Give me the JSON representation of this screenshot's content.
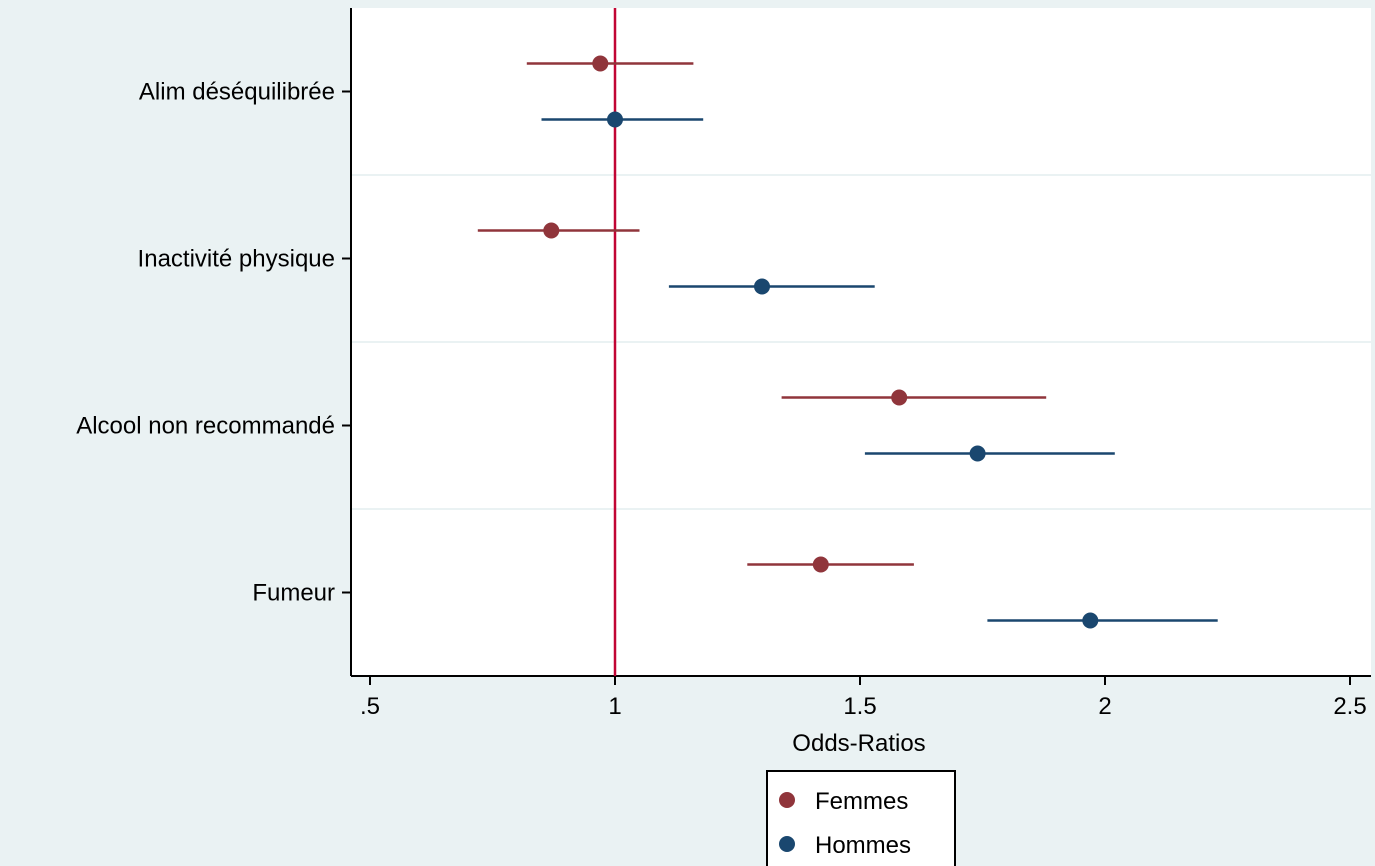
{
  "chart_data": {
    "type": "scatter",
    "subtype": "forest-plot",
    "title": "",
    "xlabel": "Odds-Ratios",
    "ylabel": "",
    "xlim": [
      0.5,
      2.5
    ],
    "x_ticks": [
      0.5,
      1,
      1.5,
      2,
      2.5
    ],
    "x_tick_labels": [
      ".5",
      "1",
      "1.5",
      "2",
      "2.5"
    ],
    "reference_line": 1,
    "categories": [
      "Alim déséquilibrée",
      "Inactivité physique",
      "Alcool non recommandé",
      "Fumeur"
    ],
    "series": [
      {
        "name": "Femmes",
        "color": "#90353b",
        "or": [
          0.97,
          0.87,
          1.58,
          1.42
        ],
        "lower": [
          0.82,
          0.72,
          1.34,
          1.27
        ],
        "upper": [
          1.16,
          1.05,
          1.88,
          1.61
        ]
      },
      {
        "name": "Hommes",
        "color": "#1a476f",
        "or": [
          1.0,
          1.3,
          1.74,
          1.97
        ],
        "lower": [
          0.85,
          1.11,
          1.51,
          1.76
        ],
        "upper": [
          1.18,
          1.53,
          2.02,
          2.23
        ]
      }
    ],
    "reference_line_color": "#c10534",
    "grid": true,
    "legend_position": "bottom"
  }
}
